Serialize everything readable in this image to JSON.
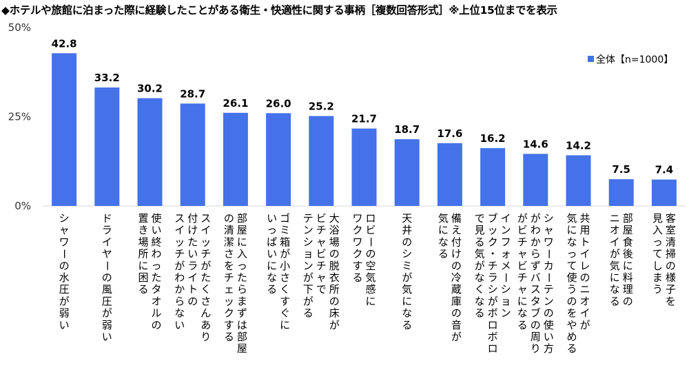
{
  "chart_data": {
    "type": "bar",
    "title": "◆ホテルや旅館に泊まった際に経験したことがある衛生・快適性に関する事柄［複数回答形式］※上位15位までを表示",
    "y_tick_labels": [
      "0%",
      "25%",
      "50%"
    ],
    "ylim": [
      0,
      50
    ],
    "grid": false,
    "legend_position": "top-right",
    "bar_color": "#4472e8",
    "series": [
      {
        "name": "全体【n=1000】",
        "values": [
          42.8,
          33.2,
          30.2,
          28.7,
          26.1,
          26.0,
          25.2,
          21.7,
          18.7,
          17.6,
          16.2,
          14.6,
          14.2,
          7.5,
          7.4
        ]
      }
    ],
    "value_labels": [
      "42.8",
      "33.2",
      "30.2",
      "28.7",
      "26.1",
      "26.0",
      "25.2",
      "21.7",
      "18.7",
      "17.6",
      "16.2",
      "14.6",
      "14.2",
      "7.5",
      "7.4"
    ],
    "categories": [
      [
        "シャワーの水圧が弱い"
      ],
      [
        "ドライヤーの風圧が弱い"
      ],
      [
        "使い終わったタオルの",
        "置き場所に困る"
      ],
      [
        "スイッチがたくさんあり",
        "付けたいライトの",
        "スイッチがわからない"
      ],
      [
        "部屋に入ったらまずは部屋",
        "の清潔さをチェックする"
      ],
      [
        "ゴミ箱が小さくすぐに",
        "いっぱいになる"
      ],
      [
        "大浴場の脱衣所の床が",
        "ビチャビチャで",
        "テンションが下がる"
      ],
      [
        "ロビーの空気感に",
        "ワクワクする"
      ],
      [
        "天井のシミが気になる"
      ],
      [
        "備え付けの冷蔵庫の音が",
        "気になる"
      ],
      [
        "インフォメーション",
        "ブック・チラシがボロボロ",
        "で見る気がなくなる"
      ],
      [
        "シャワーカーテンの使い方",
        "がわからずバスタブの周り",
        "がビチャビチャになる"
      ],
      [
        "共用トイレのニオイが",
        "気になって使うのをやめる"
      ],
      [
        "部屋食後に料理の",
        "ニオイが気になる"
      ],
      [
        "客室清掃の様子を",
        "見入ってしまう"
      ]
    ]
  }
}
